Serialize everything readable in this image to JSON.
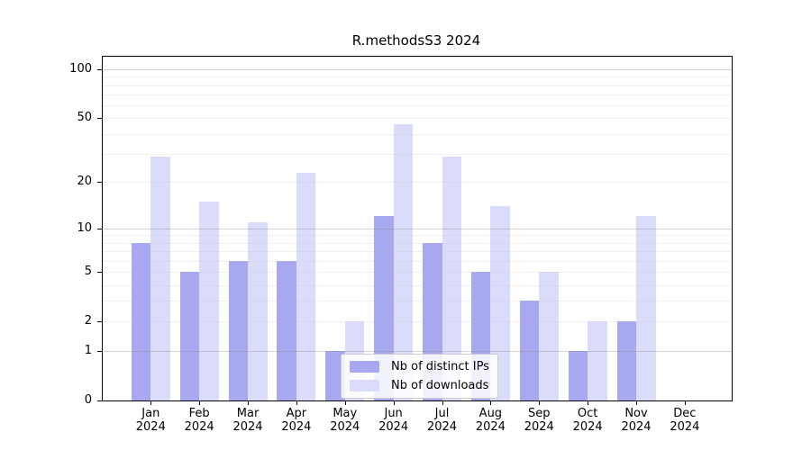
{
  "chart_data": {
    "type": "bar",
    "title": "R.methodsS3 2024",
    "categories": [
      "Jan",
      "Feb",
      "Mar",
      "Apr",
      "May",
      "Jun",
      "Jul",
      "Aug",
      "Sep",
      "Oct",
      "Nov",
      "Dec"
    ],
    "year_label": "2024",
    "series": [
      {
        "name": "Nb of distinct IPs",
        "color": "#a8a8f1",
        "values": [
          8,
          5,
          6,
          6,
          1,
          12,
          8,
          5,
          3,
          1,
          2,
          0
        ]
      },
      {
        "name": "Nb of downloads",
        "color": "#dbdbfa",
        "values": [
          29,
          15,
          11,
          23,
          2,
          46,
          29,
          14,
          5,
          2,
          12,
          0
        ]
      }
    ],
    "xlabel": "",
    "ylabel": "",
    "y_ticks": [
      0,
      1,
      2,
      5,
      10,
      20,
      50,
      100
    ],
    "y_minor_gridlines": [
      2,
      3,
      4,
      5,
      6,
      7,
      8,
      9,
      20,
      30,
      40,
      50,
      60,
      70,
      80,
      90
    ],
    "y_major_gridlines": [
      1,
      10,
      100
    ],
    "scale": "log10(1+x)",
    "ylim": [
      0,
      119
    ],
    "grid": "horizontal",
    "legend_position": "lower center",
    "frame": "full box"
  }
}
